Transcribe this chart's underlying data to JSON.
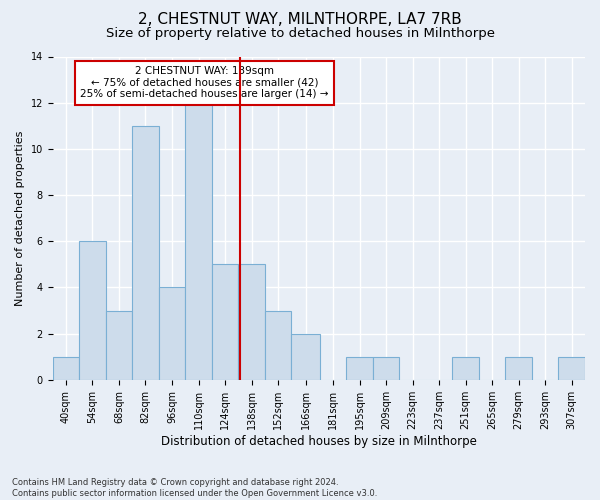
{
  "title": "2, CHESTNUT WAY, MILNTHORPE, LA7 7RB",
  "subtitle": "Size of property relative to detached houses in Milnthorpe",
  "xlabel": "Distribution of detached houses by size in Milnthorpe",
  "ylabel": "Number of detached properties",
  "bin_edges": [
    40,
    54,
    68,
    82,
    96,
    110,
    124,
    138,
    152,
    166,
    181,
    195,
    209,
    223,
    237,
    251,
    265,
    279,
    293,
    307,
    321
  ],
  "counts": [
    1,
    6,
    3,
    11,
    4,
    12,
    5,
    5,
    3,
    2,
    0,
    1,
    1,
    0,
    0,
    1,
    0,
    1,
    0,
    1
  ],
  "bar_facecolor": "#cddceb",
  "bar_edgecolor": "#7aafd4",
  "property_size": 139,
  "vline_color": "#cc0000",
  "annotation_text": "2 CHESTNUT WAY: 139sqm\n← 75% of detached houses are smaller (42)\n25% of semi-detached houses are larger (14) →",
  "annotation_box_edgecolor": "#cc0000",
  "annotation_box_facecolor": "#ffffff",
  "footer_line1": "Contains HM Land Registry data © Crown copyright and database right 2024.",
  "footer_line2": "Contains public sector information licensed under the Open Government Licence v3.0.",
  "ylim": [
    0,
    14
  ],
  "yticks": [
    0,
    2,
    4,
    6,
    8,
    10,
    12,
    14
  ],
  "background_color": "#e8eef6",
  "grid_color": "#ffffff",
  "title_fontsize": 11,
  "subtitle_fontsize": 9.5,
  "tick_label_fontsize": 7,
  "ylabel_fontsize": 8,
  "xlabel_fontsize": 8.5
}
